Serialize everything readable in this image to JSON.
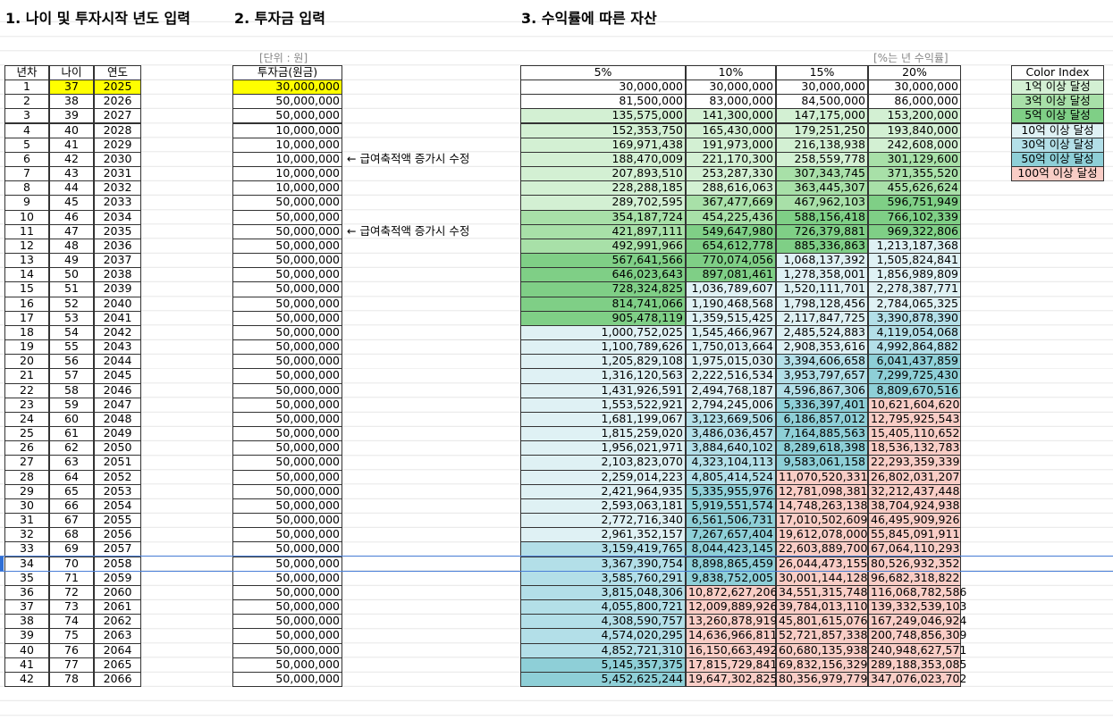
{
  "sections": {
    "age_title": "1. 나이 및 투자시작 년도 입력",
    "invest_title": "2. 투자금 입력",
    "asset_title": "3. 수익률에 따른 자산"
  },
  "unit_note": "[단위 : 원]",
  "rate_note": "[%는 년 수익률]",
  "color_index": {
    "title": "Color Index",
    "items": [
      {
        "value": 100000000,
        "label": "1억 이상 달성",
        "color": "#d3f0d3"
      },
      {
        "value": 300000000,
        "label": "3억 이상 달성",
        "color": "#a8e0a8"
      },
      {
        "value": 500000000,
        "label": "5억 이상 달성",
        "color": "#7fcf86"
      },
      {
        "value": 1000000000,
        "label": "10억 이상 달성",
        "color": "#dff1f4"
      },
      {
        "value": 3000000000,
        "label": "30억 이상 달성",
        "color": "#b3dfe8"
      },
      {
        "value": 5000000000,
        "label": "50억 이상 달성",
        "color": "#8ecfd7"
      },
      {
        "value": 10000000000,
        "label": "100억 이상 달성",
        "color": "#f9cdc6"
      }
    ]
  },
  "table": {
    "headers": [
      "년차",
      "나이",
      "연도",
      "투자금(원금)",
      "5%",
      "10%",
      "15%",
      "20%"
    ],
    "rows": [
      {
        "cells": [
          "1",
          "37",
          "2025",
          "30,000,000",
          "30,000,000",
          "30,000,000",
          "30,000,000",
          "30,000,000"
        ]
      },
      {
        "cells": [
          "2",
          "38",
          "2026",
          "50,000,000",
          "81,500,000",
          "83,000,000",
          "84,500,000",
          "86,000,000"
        ]
      },
      {
        "cells": [
          "3",
          "39",
          "2027",
          "50,000,000",
          "135,575,000",
          "141,300,000",
          "147,175,000",
          "153,200,000"
        ]
      },
      {
        "cells": [
          "4",
          "40",
          "2028",
          "10,000,000",
          "152,353,750",
          "165,430,000",
          "179,251,250",
          "193,840,000"
        ]
      },
      {
        "cells": [
          "5",
          "41",
          "2029",
          "10,000,000",
          "169,971,438",
          "191,973,000",
          "216,138,938",
          "242,608,000"
        ]
      },
      {
        "cells": [
          "6",
          "42",
          "2030",
          "10,000,000",
          "188,470,009",
          "221,170,300",
          "258,559,778",
          "301,129,600"
        ],
        "note": "← 급여축적액 증가시 수정"
      },
      {
        "cells": [
          "7",
          "43",
          "2031",
          "10,000,000",
          "207,893,510",
          "253,287,330",
          "307,343,745",
          "371,355,520"
        ]
      },
      {
        "cells": [
          "8",
          "44",
          "2032",
          "10,000,000",
          "228,288,185",
          "288,616,063",
          "363,445,307",
          "455,626,624"
        ]
      },
      {
        "cells": [
          "9",
          "45",
          "2033",
          "50,000,000",
          "289,702,595",
          "367,477,669",
          "467,962,103",
          "596,751,949"
        ]
      },
      {
        "cells": [
          "10",
          "46",
          "2034",
          "50,000,000",
          "354,187,724",
          "454,225,436",
          "588,156,418",
          "766,102,339"
        ]
      },
      {
        "cells": [
          "11",
          "47",
          "2035",
          "50,000,000",
          "421,897,111",
          "549,647,980",
          "726,379,881",
          "969,322,806"
        ],
        "note": "← 급여축적액 증가시 수정"
      },
      {
        "cells": [
          "12",
          "48",
          "2036",
          "50,000,000",
          "492,991,966",
          "654,612,778",
          "885,336,863",
          "1,213,187,368"
        ]
      },
      {
        "cells": [
          "13",
          "49",
          "2037",
          "50,000,000",
          "567,641,566",
          "770,074,056",
          "1,068,137,392",
          "1,505,824,841"
        ]
      },
      {
        "cells": [
          "14",
          "50",
          "2038",
          "50,000,000",
          "646,023,643",
          "897,081,461",
          "1,278,358,001",
          "1,856,989,809"
        ]
      },
      {
        "cells": [
          "15",
          "51",
          "2039",
          "50,000,000",
          "728,324,825",
          "1,036,789,607",
          "1,520,111,701",
          "2,278,387,771"
        ]
      },
      {
        "cells": [
          "16",
          "52",
          "2040",
          "50,000,000",
          "814,741,066",
          "1,190,468,568",
          "1,798,128,456",
          "2,784,065,325"
        ]
      },
      {
        "cells": [
          "17",
          "53",
          "2041",
          "50,000,000",
          "905,478,119",
          "1,359,515,425",
          "2,117,847,725",
          "3,390,878,390"
        ]
      },
      {
        "cells": [
          "18",
          "54",
          "2042",
          "50,000,000",
          "1,000,752,025",
          "1,545,466,967",
          "2,485,524,883",
          "4,119,054,068"
        ]
      },
      {
        "cells": [
          "19",
          "55",
          "2043",
          "50,000,000",
          "1,100,789,626",
          "1,750,013,664",
          "2,908,353,616",
          "4,992,864,882"
        ]
      },
      {
        "cells": [
          "20",
          "56",
          "2044",
          "50,000,000",
          "1,205,829,108",
          "1,975,015,030",
          "3,394,606,658",
          "6,041,437,859"
        ]
      },
      {
        "cells": [
          "21",
          "57",
          "2045",
          "50,000,000",
          "1,316,120,563",
          "2,222,516,534",
          "3,953,797,657",
          "7,299,725,430"
        ]
      },
      {
        "cells": [
          "22",
          "58",
          "2046",
          "50,000,000",
          "1,431,926,591",
          "2,494,768,187",
          "4,596,867,306",
          "8,809,670,516"
        ]
      },
      {
        "cells": [
          "23",
          "59",
          "2047",
          "50,000,000",
          "1,553,522,921",
          "2,794,245,006",
          "5,336,397,401",
          "10,621,604,620"
        ]
      },
      {
        "cells": [
          "24",
          "60",
          "2048",
          "50,000,000",
          "1,681,199,067",
          "3,123,669,506",
          "6,186,857,012",
          "12,795,925,543"
        ]
      },
      {
        "cells": [
          "25",
          "61",
          "2049",
          "50,000,000",
          "1,815,259,020",
          "3,486,036,457",
          "7,164,885,563",
          "15,405,110,652"
        ]
      },
      {
        "cells": [
          "26",
          "62",
          "2050",
          "50,000,000",
          "1,956,021,971",
          "3,884,640,102",
          "8,289,618,398",
          "18,536,132,783"
        ]
      },
      {
        "cells": [
          "27",
          "63",
          "2051",
          "50,000,000",
          "2,103,823,070",
          "4,323,104,113",
          "9,583,061,158",
          "22,293,359,339"
        ]
      },
      {
        "cells": [
          "28",
          "64",
          "2052",
          "50,000,000",
          "2,259,014,223",
          "4,805,414,524",
          "11,070,520,331",
          "26,802,031,207"
        ]
      },
      {
        "cells": [
          "29",
          "65",
          "2053",
          "50,000,000",
          "2,421,964,935",
          "5,335,955,976",
          "12,781,098,381",
          "32,212,437,448"
        ]
      },
      {
        "cells": [
          "30",
          "66",
          "2054",
          "50,000,000",
          "2,593,063,181",
          "5,919,551,574",
          "14,748,263,138",
          "38,704,924,938"
        ]
      },
      {
        "cells": [
          "31",
          "67",
          "2055",
          "50,000,000",
          "2,772,716,340",
          "6,561,506,731",
          "17,010,502,609",
          "46,495,909,926"
        ]
      },
      {
        "cells": [
          "32",
          "68",
          "2056",
          "50,000,000",
          "2,961,352,157",
          "7,267,657,404",
          "19,612,078,000",
          "55,845,091,911"
        ]
      },
      {
        "cells": [
          "33",
          "69",
          "2057",
          "50,000,000",
          "3,159,419,765",
          "8,044,423,145",
          "22,603,889,700",
          "67,064,110,293"
        ]
      },
      {
        "cells": [
          "34",
          "70",
          "2058",
          "50,000,000",
          "3,367,390,754",
          "8,898,865,459",
          "26,044,473,155",
          "80,526,932,352"
        ]
      },
      {
        "cells": [
          "35",
          "71",
          "2059",
          "50,000,000",
          "3,585,760,291",
          "9,838,752,005",
          "30,001,144,128",
          "96,682,318,822"
        ]
      },
      {
        "cells": [
          "36",
          "72",
          "2060",
          "50,000,000",
          "3,815,048,306",
          "10,872,627,206",
          "34,551,315,748",
          "116,068,782,586"
        ]
      },
      {
        "cells": [
          "37",
          "73",
          "2061",
          "50,000,000",
          "4,055,800,721",
          "12,009,889,926",
          "39,784,013,110",
          "139,332,539,103"
        ]
      },
      {
        "cells": [
          "38",
          "74",
          "2062",
          "50,000,000",
          "4,308,590,757",
          "13,260,878,919",
          "45,801,615,076",
          "167,249,046,924"
        ]
      },
      {
        "cells": [
          "39",
          "75",
          "2063",
          "50,000,000",
          "4,574,020,295",
          "14,636,966,811",
          "52,721,857,338",
          "200,748,856,309"
        ]
      },
      {
        "cells": [
          "40",
          "76",
          "2064",
          "50,000,000",
          "4,852,721,310",
          "16,150,663,492",
          "60,680,135,938",
          "240,948,627,571"
        ]
      },
      {
        "cells": [
          "41",
          "77",
          "2065",
          "50,000,000",
          "5,145,357,375",
          "17,815,729,841",
          "69,832,156,329",
          "289,188,353,085"
        ]
      },
      {
        "cells": [
          "42",
          "78",
          "2066",
          "50,000,000",
          "5,452,625,244",
          "19,647,302,825",
          "80,356,979,779",
          "347,076,023,702"
        ]
      }
    ]
  }
}
